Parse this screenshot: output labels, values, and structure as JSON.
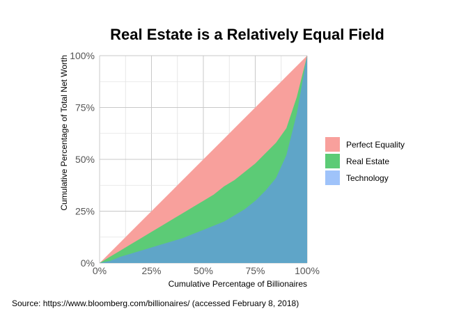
{
  "chart_data": {
    "type": "area",
    "title": "Real Estate is a Relatively Equal Field",
    "xlabel": "Cumulative Percentage of Billionaires",
    "ylabel": "Cumulative Percentage of Total Net Worth",
    "xlim": [
      0,
      100
    ],
    "ylim": [
      0,
      100
    ],
    "x_ticks": [
      "0%",
      "25%",
      "50%",
      "75%",
      "100%"
    ],
    "y_ticks": [
      "0%",
      "25%",
      "50%",
      "75%",
      "100%"
    ],
    "grid": true,
    "legend_position": "right",
    "caption": "Source: https://www.bloomberg.com/billionaires/ (accessed February 8, 2018)",
    "x": [
      0,
      5,
      10,
      15,
      20,
      25,
      30,
      35,
      40,
      45,
      50,
      55,
      60,
      65,
      70,
      75,
      80,
      85,
      90,
      95,
      100
    ],
    "series": [
      {
        "name": "Perfect Equality",
        "color": "#F8A09C",
        "values": [
          0,
          5,
          10,
          15,
          20,
          25,
          30,
          35,
          40,
          45,
          50,
          55,
          60,
          65,
          70,
          75,
          80,
          85,
          90,
          95,
          100
        ]
      },
      {
        "name": "Real Estate",
        "color": "#5CCB76",
        "values": [
          0,
          3,
          6,
          9,
          12,
          15,
          18,
          21,
          24,
          27,
          30,
          33,
          37,
          40,
          44,
          48,
          53,
          58,
          65,
          80,
          100
        ]
      },
      {
        "name": "Technology",
        "color": "#9FC3FA",
        "display_color": "#5FA5C8",
        "values": [
          0,
          1,
          3,
          4.5,
          6,
          7.5,
          9,
          10.5,
          12,
          14,
          16,
          18,
          20,
          23,
          26,
          30,
          35,
          41,
          52,
          72,
          100
        ]
      }
    ]
  }
}
